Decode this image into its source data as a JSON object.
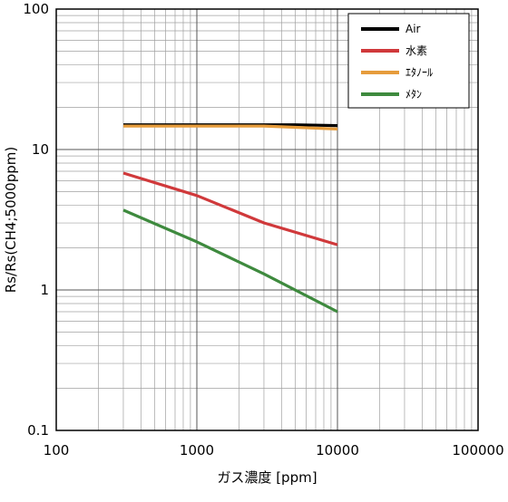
{
  "chart_data": {
    "type": "line",
    "title": "",
    "xlabel": "ガス濃度 [ppm]",
    "ylabel": "Rs/Rs(CH4;5000ppm)",
    "x_scale": "log",
    "y_scale": "log",
    "xlim": [
      100,
      100000
    ],
    "ylim": [
      0.1,
      100
    ],
    "x_ticks": [
      {
        "value": 100,
        "label": "100"
      },
      {
        "value": 1000,
        "label": "1000"
      },
      {
        "value": 10000,
        "label": "10000"
      },
      {
        "value": 100000,
        "label": "100000"
      }
    ],
    "y_ticks": [
      {
        "value": 0.1,
        "label": "0.1"
      },
      {
        "value": 1,
        "label": "1"
      },
      {
        "value": 10,
        "label": "10"
      },
      {
        "value": 100,
        "label": "100"
      }
    ],
    "grid": true,
    "legend_position": "top-right",
    "series": [
      {
        "name": "Air",
        "color": "#000000",
        "x": [
          300,
          1000,
          3000,
          5000,
          10000
        ],
        "y": [
          15,
          15,
          15,
          15,
          14.8
        ]
      },
      {
        "name": "水素",
        "color": "#d0393b",
        "x": [
          300,
          1000,
          3000,
          10000
        ],
        "y": [
          6.8,
          4.7,
          3.0,
          2.1
        ]
      },
      {
        "name": "ｴﾀﾉｰﾙ",
        "color": "#e69c3c",
        "x": [
          300,
          1000,
          3000,
          5000,
          10000
        ],
        "y": [
          14.7,
          14.7,
          14.7,
          14.4,
          14.0
        ]
      },
      {
        "name": "ﾒﾀﾝ",
        "color": "#3e8a3e",
        "x": [
          300,
          1000,
          3000,
          10000
        ],
        "y": [
          3.7,
          2.2,
          1.3,
          0.7
        ]
      }
    ]
  }
}
